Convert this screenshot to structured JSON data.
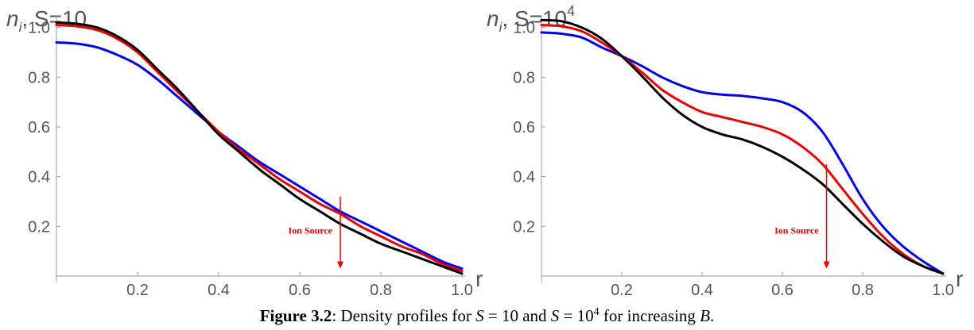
{
  "chart_data": [
    {
      "type": "line",
      "title": "n_i, S=10",
      "title_var": "n",
      "title_sub": "i",
      "title_rest": ", S=10",
      "xlabel": "r",
      "ylabel": "",
      "xlim": [
        0,
        1.0
      ],
      "ylim": [
        0,
        1.05
      ],
      "xticks": [
        0.2,
        0.4,
        0.6,
        0.8,
        1.0
      ],
      "xtick_labels": [
        "0.2",
        "0.4",
        "0.6",
        "0.8",
        "1.0"
      ],
      "yticks": [
        0.2,
        0.4,
        0.6,
        0.8,
        1.0
      ],
      "ytick_labels": [
        "0.2",
        "0.4",
        "0.6",
        "0.8",
        "1.0"
      ],
      "grid": false,
      "x": [
        0,
        0.05,
        0.1,
        0.15,
        0.2,
        0.25,
        0.3,
        0.35,
        0.4,
        0.45,
        0.5,
        0.55,
        0.6,
        0.65,
        0.7,
        0.75,
        0.8,
        0.85,
        0.9,
        0.95,
        1.0
      ],
      "series": [
        {
          "color": "#0000ee",
          "values": [
            0.94,
            0.935,
            0.92,
            0.89,
            0.85,
            0.79,
            0.72,
            0.65,
            0.58,
            0.52,
            0.46,
            0.41,
            0.36,
            0.31,
            0.26,
            0.22,
            0.18,
            0.14,
            0.1,
            0.06,
            0.03
          ]
        },
        {
          "color": "#ee0000",
          "values": [
            1.01,
            1.005,
            0.99,
            0.955,
            0.9,
            0.82,
            0.74,
            0.66,
            0.58,
            0.51,
            0.45,
            0.39,
            0.34,
            0.29,
            0.25,
            0.2,
            0.16,
            0.12,
            0.09,
            0.05,
            0.02
          ]
        },
        {
          "color": "#000000",
          "values": [
            1.02,
            1.015,
            1.0,
            0.965,
            0.91,
            0.83,
            0.75,
            0.66,
            0.57,
            0.5,
            0.43,
            0.37,
            0.31,
            0.26,
            0.21,
            0.17,
            0.13,
            0.1,
            0.07,
            0.04,
            0.01
          ]
        }
      ],
      "annotation": {
        "text": "Ion Source",
        "x": 0.7,
        "y_top": 0.32,
        "y_bottom": 0.03,
        "color": "#ee0000"
      }
    },
    {
      "type": "line",
      "title": "n_i, S=10^4",
      "title_var": "n",
      "title_sub": "i",
      "title_rest": ", S=10",
      "title_sup": "4",
      "xlabel": "r",
      "ylabel": "",
      "xlim": [
        0,
        1.0
      ],
      "ylim": [
        0,
        1.05
      ],
      "xticks": [
        0.2,
        0.4,
        0.6,
        0.8,
        1.0
      ],
      "xtick_labels": [
        "0.2",
        "0.4",
        "0.6",
        "0.8",
        "1.0"
      ],
      "yticks": [
        0.2,
        0.4,
        0.6,
        0.8,
        1.0
      ],
      "ytick_labels": [
        "0.2",
        "0.4",
        "0.6",
        "0.8",
        "1.0"
      ],
      "grid": false,
      "x": [
        0,
        0.05,
        0.1,
        0.15,
        0.2,
        0.25,
        0.3,
        0.35,
        0.4,
        0.45,
        0.5,
        0.55,
        0.6,
        0.65,
        0.7,
        0.75,
        0.8,
        0.85,
        0.9,
        0.95,
        1.0
      ],
      "series": [
        {
          "color": "#0000ee",
          "values": [
            0.98,
            0.975,
            0.96,
            0.92,
            0.885,
            0.845,
            0.8,
            0.765,
            0.74,
            0.73,
            0.725,
            0.715,
            0.7,
            0.66,
            0.58,
            0.45,
            0.31,
            0.2,
            0.12,
            0.06,
            0.01
          ]
        },
        {
          "color": "#ee0000",
          "values": [
            1.01,
            1.005,
            0.985,
            0.94,
            0.885,
            0.82,
            0.75,
            0.7,
            0.66,
            0.64,
            0.62,
            0.6,
            0.57,
            0.52,
            0.45,
            0.35,
            0.25,
            0.16,
            0.09,
            0.04,
            0.01
          ]
        },
        {
          "color": "#000000",
          "values": [
            1.03,
            1.025,
            1.0,
            0.955,
            0.885,
            0.805,
            0.72,
            0.65,
            0.6,
            0.57,
            0.55,
            0.52,
            0.48,
            0.43,
            0.37,
            0.29,
            0.21,
            0.14,
            0.08,
            0.04,
            0.01
          ]
        }
      ],
      "annotation": {
        "text": "Ion Source",
        "x": 0.71,
        "y_top": 0.45,
        "y_bottom": 0.03,
        "color": "#ee0000"
      }
    }
  ],
  "caption": {
    "label": "Figure 3.2",
    "sep": ": Density profiles for ",
    "s_var_1": "S",
    "eq_1": " = 10 and ",
    "s_var_2": "S",
    "eq_2": " = 10",
    "exp": "4",
    "mid": " for increasing ",
    "b_var": "B",
    "end": "."
  }
}
